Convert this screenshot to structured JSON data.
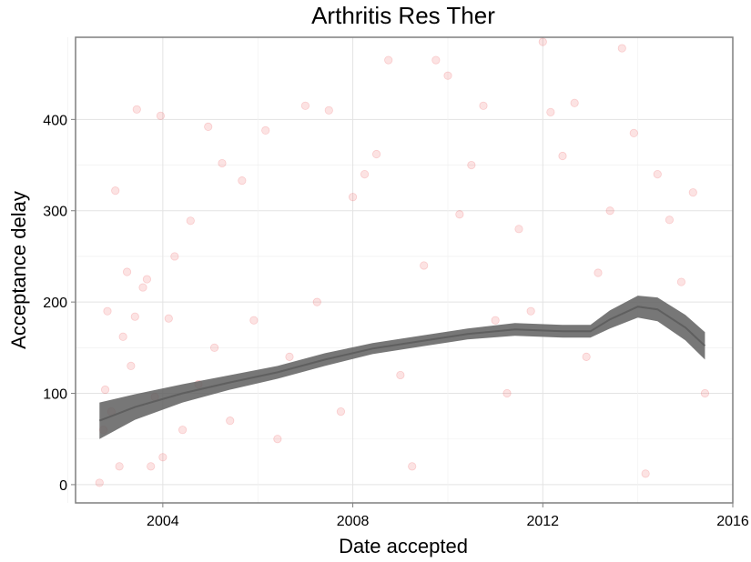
{
  "chart_data": {
    "type": "scatter",
    "title": "Arthritis Res Ther",
    "xlabel": "Date accepted",
    "ylabel": "Acceptance delay",
    "x_ticks": [
      "2004",
      "2008",
      "2012",
      "2016"
    ],
    "y_ticks": [
      "0",
      "100",
      "200",
      "300",
      "400"
    ],
    "xlim": [
      "2002-03-01",
      "2016-01-01"
    ],
    "ylim": [
      -20,
      490
    ],
    "grid": true,
    "point_color": "#e8191c",
    "point_opacity": 0.12,
    "smooth_color": "#5f5f5f",
    "series": [
      {
        "type": "scatter",
        "points": [
          [
            "2002-09-01",
            2
          ],
          [
            "2002-10-01",
            60
          ],
          [
            "2002-10-15",
            104
          ],
          [
            "2002-11-01",
            190
          ],
          [
            "2002-12-01",
            80
          ],
          [
            "2003-01-01",
            322
          ],
          [
            "2003-02-01",
            20
          ],
          [
            "2003-03-01",
            162
          ],
          [
            "2003-04-01",
            233
          ],
          [
            "2003-05-01",
            130
          ],
          [
            "2003-06-01",
            184
          ],
          [
            "2003-06-15",
            411
          ],
          [
            "2003-08-01",
            216
          ],
          [
            "2003-09-01",
            225
          ],
          [
            "2003-10-01",
            20
          ],
          [
            "2003-11-01",
            96
          ],
          [
            "2003-12-15",
            404
          ],
          [
            "2004-01-01",
            30
          ],
          [
            "2004-02-15",
            182
          ],
          [
            "2004-04-01",
            250
          ],
          [
            "2004-06-01",
            60
          ],
          [
            "2004-08-01",
            289
          ],
          [
            "2004-10-01",
            110
          ],
          [
            "2004-12-15",
            392
          ],
          [
            "2005-02-01",
            150
          ],
          [
            "2005-04-01",
            352
          ],
          [
            "2005-06-01",
            70
          ],
          [
            "2005-09-01",
            333
          ],
          [
            "2005-12-01",
            180
          ],
          [
            "2006-03-01",
            388
          ],
          [
            "2006-06-01",
            50
          ],
          [
            "2006-09-01",
            140
          ],
          [
            "2007-01-01",
            415
          ],
          [
            "2007-04-01",
            200
          ],
          [
            "2007-07-01",
            410
          ],
          [
            "2007-10-01",
            80
          ],
          [
            "2008-01-01",
            315
          ],
          [
            "2008-04-01",
            340
          ],
          [
            "2008-07-01",
            362
          ],
          [
            "2008-10-01",
            465
          ],
          [
            "2009-01-01",
            120
          ],
          [
            "2009-04-01",
            20
          ],
          [
            "2009-07-01",
            240
          ],
          [
            "2009-10-01",
            465
          ],
          [
            "2010-01-01",
            448
          ],
          [
            "2010-04-01",
            296
          ],
          [
            "2010-07-01",
            350
          ],
          [
            "2010-10-01",
            415
          ],
          [
            "2011-01-01",
            180
          ],
          [
            "2011-04-01",
            100
          ],
          [
            "2011-07-01",
            280
          ],
          [
            "2011-10-01",
            190
          ],
          [
            "2012-01-01",
            485
          ],
          [
            "2012-03-01",
            408
          ],
          [
            "2012-06-01",
            360
          ],
          [
            "2012-09-01",
            418
          ],
          [
            "2012-12-01",
            140
          ],
          [
            "2013-03-01",
            232
          ],
          [
            "2013-06-01",
            300
          ],
          [
            "2013-09-01",
            478
          ],
          [
            "2013-12-01",
            385
          ],
          [
            "2014-03-01",
            12
          ],
          [
            "2014-06-01",
            340
          ],
          [
            "2014-09-01",
            290
          ],
          [
            "2014-12-01",
            222
          ],
          [
            "2015-03-01",
            320
          ],
          [
            "2015-06-01",
            100
          ]
        ]
      },
      {
        "type": "smooth",
        "x": [
          "2002-09-01",
          "2003-06-01",
          "2004-06-01",
          "2005-06-01",
          "2006-06-01",
          "2007-06-01",
          "2008-06-01",
          "2009-06-01",
          "2010-06-01",
          "2011-06-01",
          "2012-06-01",
          "2013-01-01",
          "2013-06-01",
          "2014-01-01",
          "2014-06-01",
          "2015-01-01",
          "2015-06-01"
        ],
        "y": [
          70,
          85,
          100,
          112,
          123,
          137,
          149,
          157,
          165,
          170,
          168,
          168,
          181,
          195,
          192,
          172,
          152
        ],
        "band": [
          20,
          14,
          10,
          8,
          7,
          7,
          6,
          6,
          6,
          7,
          7,
          7,
          10,
          12,
          13,
          14,
          15
        ]
      }
    ]
  }
}
